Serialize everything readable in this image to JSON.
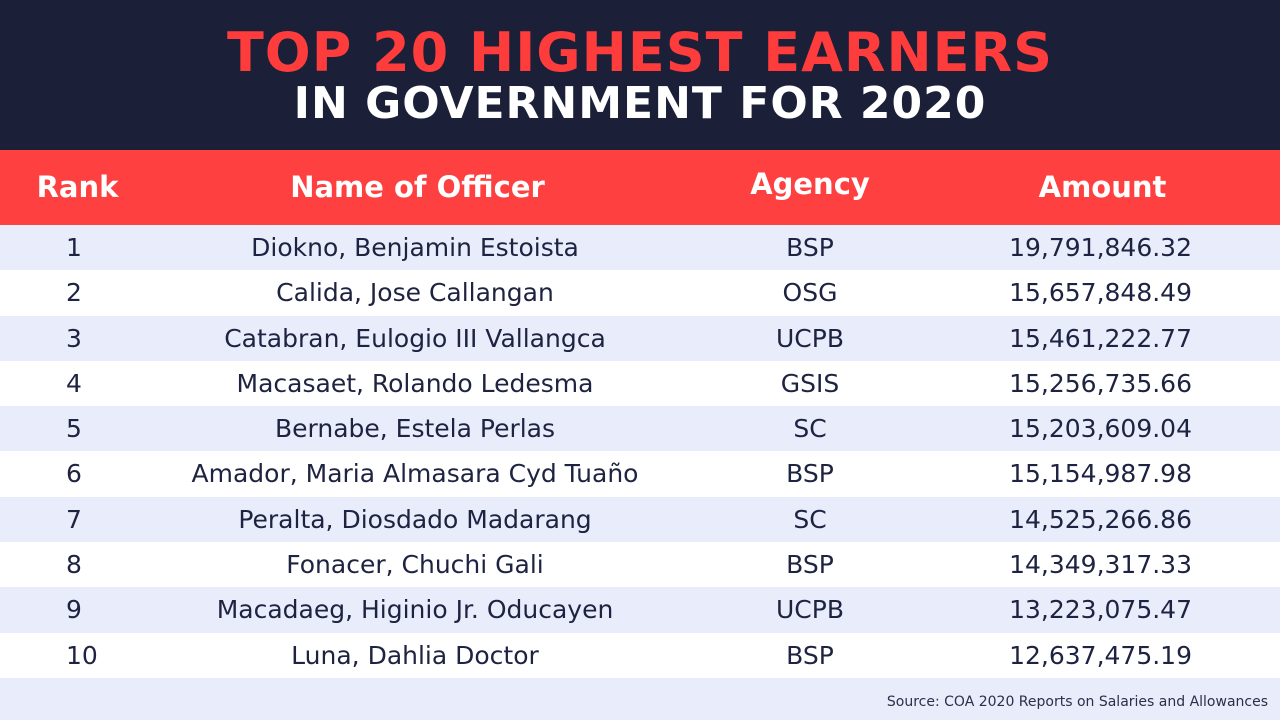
{
  "header": {
    "title_line1": "TOP 20 HIGHEST EARNERS",
    "title_line2": "IN GOVERNMENT FOR 2020"
  },
  "table": {
    "columns": {
      "rank": "Rank",
      "name": "Name of Officer",
      "agency": "Agency",
      "amount": "Amount"
    },
    "rows": [
      {
        "rank": "1",
        "name": "Diokno, Benjamin Estoista",
        "agency": "BSP",
        "amount": "19,791,846.32"
      },
      {
        "rank": "2",
        "name": "Calida, Jose Callangan",
        "agency": "OSG",
        "amount": "15,657,848.49"
      },
      {
        "rank": "3",
        "name": "Catabran, Eulogio III Vallangca",
        "agency": "UCPB",
        "amount": "15,461,222.77"
      },
      {
        "rank": "4",
        "name": "Macasaet, Rolando Ledesma",
        "agency": "GSIS",
        "amount": "15,256,735.66"
      },
      {
        "rank": "5",
        "name": "Bernabe, Estela Perlas",
        "agency": "SC",
        "amount": "15,203,609.04"
      },
      {
        "rank": "6",
        "name": "Amador, Maria Almasara Cyd Tuaño",
        "agency": "BSP",
        "amount": "15,154,987.98"
      },
      {
        "rank": "7",
        "name": "Peralta, Diosdado Madarang",
        "agency": "SC",
        "amount": "14,525,266.86"
      },
      {
        "rank": "8",
        "name": "Fonacer, Chuchi Gali",
        "agency": "BSP",
        "amount": "14,349,317.33"
      },
      {
        "rank": "9",
        "name": "Macadaeg, Higinio Jr. Oducayen",
        "agency": "UCPB",
        "amount": "13,223,075.47"
      },
      {
        "rank": "10",
        "name": "Luna, Dahlia Doctor",
        "agency": "BSP",
        "amount": "12,637,475.19"
      }
    ]
  },
  "footer": {
    "source": "Source: COA 2020 Reports on Salaries and Allowances"
  }
}
